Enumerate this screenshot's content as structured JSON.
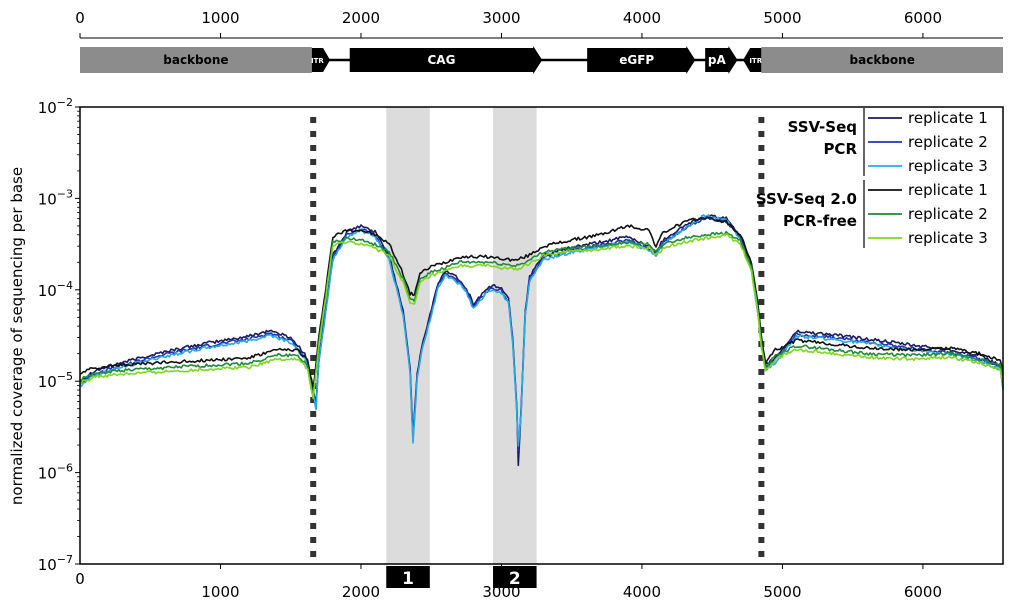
{
  "map": {
    "ticks": [
      0,
      1000,
      2000,
      3000,
      4000,
      5000,
      6000
    ],
    "features": [
      {
        "label": "backbone",
        "start": 0,
        "end": 1650,
        "type": "backbone"
      },
      {
        "label": "ITR",
        "start": 1650,
        "end": 1780,
        "type": "itr"
      },
      {
        "label": "CAG",
        "start": 1920,
        "end": 3290,
        "type": "arrow"
      },
      {
        "label": "eGFP",
        "start": 3610,
        "end": 4380,
        "type": "arrow"
      },
      {
        "label": "pA",
        "start": 4450,
        "end": 4680,
        "type": "arrow"
      },
      {
        "label": "ITR",
        "start": 4720,
        "end": 4850,
        "type": "itr-left"
      },
      {
        "label": "backbone",
        "start": 4850,
        "end": 6570,
        "type": "backbone"
      }
    ]
  },
  "chart_data": {
    "type": "line",
    "xlabel": "",
    "ylabel": "normalized coverage of sequencing per base",
    "xlim": [
      0,
      6570
    ],
    "ylim": [
      1e-07,
      0.01
    ],
    "yscale": "log",
    "x_ticks": [
      1000,
      2000,
      3000,
      4000,
      5000,
      6000
    ],
    "y_ticks": [
      {
        "base": "10",
        "exp": "−2",
        "value": 0.01
      },
      {
        "base": "10",
        "exp": "−3",
        "value": 0.001
      },
      {
        "base": "10",
        "exp": "−4",
        "value": 0.0001
      },
      {
        "base": "10",
        "exp": "−5",
        "value": 1e-05
      },
      {
        "base": "10",
        "exp": "−6",
        "value": 1e-06
      },
      {
        "base": "10",
        "exp": "−7",
        "value": 1e-07
      }
    ],
    "vlines": [
      1660,
      4850
    ],
    "regions": [
      {
        "label": "1",
        "start": 2180,
        "end": 2490
      },
      {
        "label": "2",
        "start": 2940,
        "end": 3250
      }
    ],
    "legend": {
      "placement": "top-right",
      "groups": [
        {
          "title": [
            "SSV-Seq",
            "PCR"
          ],
          "entries": [
            "replicate 1",
            "replicate 2",
            "replicate 3"
          ]
        },
        {
          "title": [
            "SSV-Seq 2.0",
            "PCR-free"
          ],
          "entries": [
            "replicate 1",
            "replicate 2",
            "replicate 3"
          ]
        }
      ]
    },
    "series": [
      {
        "group": "SSV-Seq PCR",
        "color": "#1a1a5e",
        "offset": 0.0,
        "x": [
          0,
          100,
          300,
          600,
          900,
          1200,
          1350,
          1500,
          1600,
          1650,
          1680,
          1700,
          1800,
          1900,
          2000,
          2100,
          2200,
          2300,
          2350,
          2370,
          2400,
          2430,
          2480,
          2550,
          2600,
          2650,
          2700,
          2750,
          2800,
          2850,
          2900,
          2950,
          3000,
          3050,
          3080,
          3110,
          3120,
          3140,
          3170,
          3200,
          3300,
          3500,
          3700,
          3900,
          4050,
          4100,
          4150,
          4300,
          4450,
          4600,
          4700,
          4780,
          4820,
          4850,
          4880,
          4950,
          5100,
          5300,
          5600,
          5900,
          6200,
          6400,
          6550,
          6570
        ],
        "y": [
          1e-05,
          1.3e-05,
          1.6e-05,
          2.1e-05,
          2.6e-05,
          3.1e-05,
          3.6e-05,
          3e-05,
          2e-05,
          1e-05,
          5.5e-06,
          1.8e-05,
          0.00024,
          0.00043,
          0.0005,
          0.00043,
          0.00024,
          6e-05,
          1.4e-05,
          2.5e-06,
          1.2e-05,
          2.3e-05,
          4.5e-05,
          0.00012,
          0.00016,
          0.00015,
          0.00013,
          0.000105,
          7e-05,
          8.5e-05,
          0.000105,
          0.00011,
          0.000105,
          8e-05,
          3e-05,
          5e-06,
          1.2e-06,
          5e-06,
          6e-05,
          0.00014,
          0.00024,
          0.00029,
          0.00033,
          0.00038,
          0.0003,
          0.00026,
          0.00035,
          0.0005,
          0.00065,
          0.0006,
          0.0004,
          0.00018,
          7e-05,
          3e-05,
          1.5e-05,
          1.8e-05,
          3.5e-05,
          3.3e-05,
          2.9e-05,
          2.5e-05,
          2.2e-05,
          1.9e-05,
          1.5e-05,
          9e-06
        ]
      },
      {
        "group": "SSV-Seq PCR",
        "color": "#2035b0",
        "offset": -0.03,
        "x": [
          0,
          100,
          300,
          600,
          900,
          1200,
          1350,
          1500,
          1600,
          1650,
          1680,
          1700,
          1800,
          1900,
          2000,
          2100,
          2200,
          2300,
          2350,
          2370,
          2400,
          2430,
          2480,
          2550,
          2600,
          2650,
          2700,
          2750,
          2800,
          2850,
          2900,
          2950,
          3000,
          3050,
          3080,
          3110,
          3120,
          3140,
          3170,
          3200,
          3300,
          3500,
          3700,
          3900,
          4050,
          4100,
          4150,
          4300,
          4450,
          4600,
          4700,
          4780,
          4820,
          4850,
          4880,
          4950,
          5100,
          5300,
          5600,
          5900,
          6200,
          6400,
          6550,
          6570
        ],
        "y": [
          1e-05,
          1.3e-05,
          1.6e-05,
          2.1e-05,
          2.6e-05,
          3.1e-05,
          3.6e-05,
          3e-05,
          2e-05,
          1e-05,
          5.5e-06,
          1.8e-05,
          0.00024,
          0.00043,
          0.0005,
          0.00043,
          0.00024,
          6e-05,
          1.4e-05,
          2.5e-06,
          1.2e-05,
          2.3e-05,
          4.5e-05,
          0.00012,
          0.00016,
          0.00015,
          0.00013,
          0.000105,
          7e-05,
          8.5e-05,
          0.000105,
          0.00011,
          0.000105,
          8e-05,
          3e-05,
          5e-06,
          1.8e-06,
          5e-06,
          6e-05,
          0.00014,
          0.00024,
          0.00029,
          0.00033,
          0.00038,
          0.0003,
          0.00026,
          0.00035,
          0.0005,
          0.00065,
          0.0006,
          0.0004,
          0.00018,
          7e-05,
          3e-05,
          1.5e-05,
          1.8e-05,
          3.5e-05,
          3.3e-05,
          2.9e-05,
          2.5e-05,
          2.2e-05,
          1.9e-05,
          1.5e-05,
          9e-06
        ]
      },
      {
        "group": "SSV-Seq PCR",
        "color": "#29a9e0",
        "offset": -0.05,
        "x": [
          0,
          100,
          300,
          600,
          900,
          1200,
          1350,
          1500,
          1600,
          1650,
          1680,
          1700,
          1800,
          1900,
          2000,
          2100,
          2200,
          2300,
          2350,
          2370,
          2400,
          2430,
          2480,
          2550,
          2600,
          2650,
          2700,
          2750,
          2800,
          2850,
          2900,
          2950,
          3000,
          3050,
          3080,
          3110,
          3120,
          3140,
          3170,
          3200,
          3300,
          3500,
          3700,
          3900,
          4050,
          4100,
          4150,
          4300,
          4450,
          4600,
          4700,
          4780,
          4820,
          4850,
          4880,
          4950,
          5100,
          5300,
          5600,
          5900,
          6200,
          6400,
          6550,
          6570
        ],
        "y": [
          1e-05,
          1.3e-05,
          1.6e-05,
          2.1e-05,
          2.6e-05,
          3.1e-05,
          3.6e-05,
          3e-05,
          2e-05,
          1e-05,
          5.5e-06,
          1.8e-05,
          0.00024,
          0.00043,
          0.0005,
          0.00043,
          0.00024,
          6e-05,
          1.4e-05,
          2.3e-06,
          1.2e-05,
          2.3e-05,
          4.5e-05,
          0.00012,
          0.00016,
          0.00015,
          0.00013,
          0.000105,
          7e-05,
          8.5e-05,
          0.000105,
          0.00011,
          0.000105,
          8e-05,
          3e-05,
          5e-06,
          2.2e-06,
          5e-06,
          6e-05,
          0.00014,
          0.00024,
          0.00029,
          0.00033,
          0.00038,
          0.0003,
          0.00026,
          0.00035,
          0.00052,
          0.00073,
          0.00065,
          0.0004,
          0.00018,
          7e-05,
          3e-05,
          1.5e-05,
          1.8e-05,
          3.5e-05,
          3.3e-05,
          2.9e-05,
          2.5e-05,
          2.2e-05,
          1.9e-05,
          1.5e-05,
          9e-06
        ]
      },
      {
        "group": "SSV-Seq 2.0 PCR-free",
        "color": "#111111",
        "offset": 0.0,
        "x": [
          0,
          100,
          300,
          600,
          900,
          1200,
          1400,
          1550,
          1620,
          1660,
          1700,
          1800,
          1900,
          2000,
          2100,
          2200,
          2300,
          2350,
          2380,
          2420,
          2500,
          2600,
          2700,
          2800,
          2900,
          3000,
          3100,
          3200,
          3300,
          3500,
          3700,
          3900,
          4050,
          4100,
          4150,
          4300,
          4450,
          4600,
          4700,
          4780,
          4820,
          4850,
          4880,
          4950,
          5100,
          5300,
          5600,
          5900,
          6200,
          6400,
          6550,
          6570
        ],
        "y": [
          1.2e-05,
          1.4e-05,
          1.5e-05,
          1.6e-05,
          1.7e-05,
          1.8e-05,
          2.2e-05,
          2.2e-05,
          1.7e-05,
          8e-06,
          3e-05,
          0.00038,
          0.00045,
          0.00045,
          0.0004,
          0.00032,
          0.00015,
          9e-05,
          9e-05,
          0.00015,
          0.00018,
          0.0002,
          0.00023,
          0.00023,
          0.00023,
          0.00022,
          0.00021,
          0.00024,
          0.0003,
          0.00035,
          0.0004,
          0.0005,
          0.00045,
          0.0003,
          0.00042,
          0.00055,
          0.00062,
          0.00055,
          0.0004,
          0.0002,
          8e-05,
          3e-05,
          1.6e-05,
          2.2e-05,
          2.8e-05,
          2.6e-05,
          2.3e-05,
          2.2e-05,
          2.3e-05,
          2e-05,
          1.7e-05,
          1.2e-05
        ]
      },
      {
        "group": "SSV-Seq 2.0 PCR-free",
        "color": "#1f8a3a",
        "offset": -0.06,
        "x": [
          0,
          100,
          300,
          600,
          900,
          1200,
          1400,
          1550,
          1620,
          1660,
          1700,
          1800,
          1900,
          2000,
          2100,
          2200,
          2300,
          2350,
          2380,
          2420,
          2500,
          2600,
          2700,
          2800,
          2900,
          3000,
          3100,
          3200,
          3300,
          3500,
          3700,
          3900,
          4050,
          4100,
          4150,
          4300,
          4450,
          4600,
          4700,
          4780,
          4820,
          4850,
          4880,
          4950,
          5100,
          5300,
          5600,
          5900,
          6200,
          6400,
          6550,
          6570
        ],
        "y": [
          1.2e-05,
          1.4e-05,
          1.5e-05,
          1.6e-05,
          1.7e-05,
          1.8e-05,
          2.2e-05,
          2.2e-05,
          1.7e-05,
          8e-06,
          3e-05,
          0.00038,
          0.00042,
          0.0004,
          0.00036,
          0.0003,
          0.00015,
          9e-05,
          8.5e-05,
          0.00015,
          0.00018,
          0.0002,
          0.00023,
          0.00023,
          0.00023,
          0.00022,
          0.00021,
          0.00024,
          0.0003,
          0.00033,
          0.00035,
          0.00038,
          0.00036,
          0.0003,
          0.00036,
          0.00042,
          0.00046,
          0.00048,
          0.0004,
          0.0002,
          8e-05,
          3e-05,
          1.6e-05,
          2.2e-05,
          2.8e-05,
          2.6e-05,
          2.3e-05,
          2.2e-05,
          2.3e-05,
          2e-05,
          1.7e-05,
          1.2e-05
        ]
      },
      {
        "group": "SSV-Seq 2.0 PCR-free",
        "color": "#7fd620",
        "offset": -0.1,
        "x": [
          0,
          100,
          300,
          600,
          900,
          1200,
          1400,
          1550,
          1620,
          1660,
          1700,
          1800,
          1900,
          2000,
          2100,
          2200,
          2300,
          2350,
          2380,
          2420,
          2500,
          2600,
          2700,
          2800,
          2900,
          3000,
          3100,
          3200,
          3300,
          3500,
          3700,
          3900,
          4050,
          4100,
          4150,
          4300,
          4450,
          4600,
          4700,
          4780,
          4820,
          4850,
          4880,
          4950,
          5100,
          5300,
          5600,
          5900,
          6200,
          6400,
          6550,
          6570
        ],
        "y": [
          1.2e-05,
          1.4e-05,
          1.5e-05,
          1.6e-05,
          1.7e-05,
          1.8e-05,
          2.2e-05,
          2.2e-05,
          1.7e-05,
          8e-06,
          3e-05,
          0.00038,
          0.00042,
          0.0004,
          0.00036,
          0.0003,
          0.00015,
          9e-05,
          8.5e-05,
          0.00015,
          0.00018,
          0.0002,
          0.00023,
          0.00023,
          0.00023,
          0.00022,
          0.00021,
          0.00024,
          0.0003,
          0.00033,
          0.00035,
          0.00038,
          0.00036,
          0.0003,
          0.00036,
          0.00042,
          0.00046,
          0.0005,
          0.0004,
          0.0002,
          8e-05,
          3e-05,
          1.6e-05,
          2.2e-05,
          2.8e-05,
          2.6e-05,
          2.3e-05,
          2.2e-05,
          2.3e-05,
          2e-05,
          1.7e-05,
          1.2e-05
        ]
      }
    ]
  }
}
